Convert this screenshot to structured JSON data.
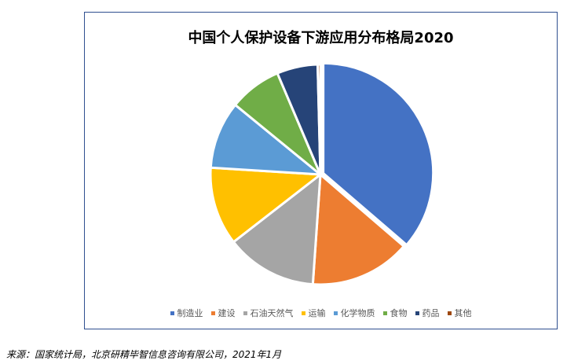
{
  "chart_data": {
    "type": "pie",
    "title": "中国个人保护设备下游应用分布格局2020",
    "categories": [
      "制造业",
      "建设",
      "石油天然气",
      "运输",
      "化学物质",
      "食物",
      "药品",
      "其他"
    ],
    "values": [
      36.3,
      14.8,
      13.4,
      11.5,
      9.9,
      7.7,
      6.0,
      0.4
    ],
    "colors": [
      "#4472c4",
      "#ed7d31",
      "#a5a5a5",
      "#ffc000",
      "#5b9bd5",
      "#70ad47",
      "#264478",
      "#9e480e"
    ],
    "legend": "bottom"
  },
  "source": "来源：国家统计局，北京研精毕智信息咨询有限公司，2021年1月"
}
